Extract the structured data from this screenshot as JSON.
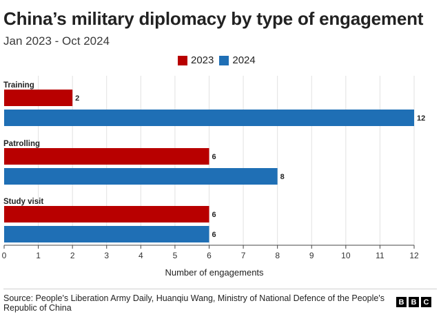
{
  "title": "China’s military diplomacy by type of engagement",
  "subtitle": "Jan 2023 - Oct 2024",
  "source": "Source: People's Liberation Army Daily, Huanqiu Wang, Ministry of National Defence of the People's Republic of China",
  "brand": {
    "letters": [
      "B",
      "B",
      "C"
    ]
  },
  "legend": [
    {
      "label": "2023",
      "color": "#b80000"
    },
    {
      "label": "2024",
      "color": "#1f6fb5"
    }
  ],
  "chart_data": {
    "type": "bar",
    "orientation": "horizontal",
    "title": "China’s military diplomacy by type of engagement",
    "subtitle": "Jan 2023 - Oct 2024",
    "categories": [
      "Training",
      "Patrolling",
      "Study visit"
    ],
    "series": [
      {
        "name": "2023",
        "color": "#b80000",
        "values": [
          2,
          6,
          6
        ]
      },
      {
        "name": "2024",
        "color": "#1f6fb5",
        "values": [
          12,
          8,
          6
        ]
      }
    ],
    "xlabel": "Number of engagements",
    "ylabel": "",
    "xlim": [
      0,
      12
    ],
    "xticks": [
      0,
      1,
      2,
      3,
      4,
      5,
      6,
      7,
      8,
      9,
      10,
      11,
      12
    ],
    "grid": true,
    "legend": "top-center"
  }
}
